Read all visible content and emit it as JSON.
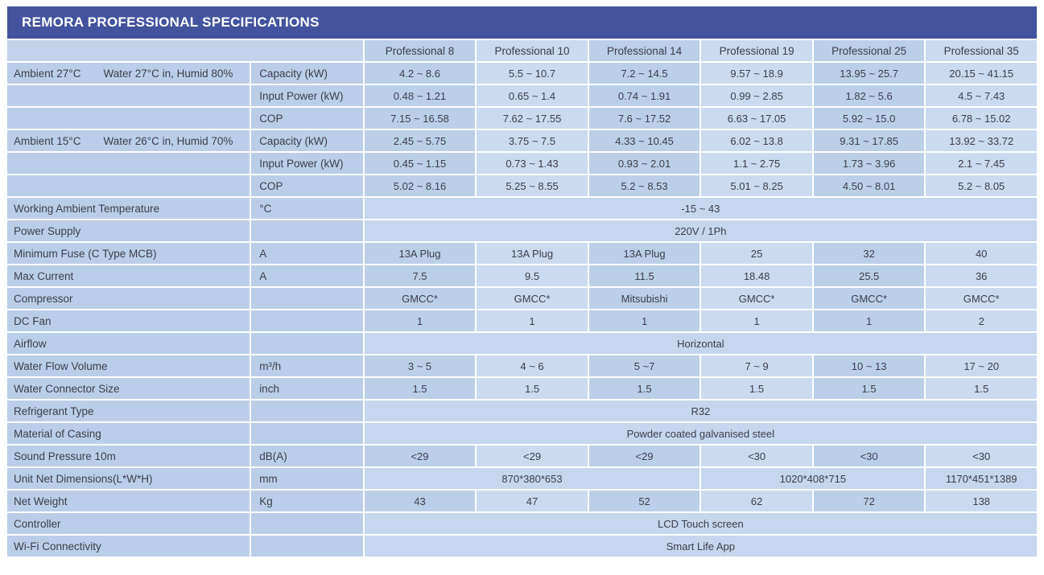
{
  "title": "REMORA PROFESSIONAL SPECIFICATIONS",
  "colors": {
    "title_bar": "#44539e",
    "cell_dark": "#bccfe9",
    "cell_light": "#cbdaf0",
    "cell_span": "#c6d6ee",
    "label_cell": "#bbcee9",
    "text": "#3d3d4c",
    "title_text": "#ffffff"
  },
  "columns": [
    "Professional 8",
    "Professional 10",
    "Professional 14",
    "Professional 19",
    "Professional 25",
    "Professional 35"
  ],
  "rows": [
    {
      "label": "Ambient 27°C",
      "label2": "Water 27°C in, Humid 80%",
      "unit": "Capacity (kW)",
      "cells": [
        "4.2 ~ 8.6",
        "5.5 ~ 10.7",
        "7.2 ~ 14.5",
        "9.57 ~ 18.9",
        "13.95 ~ 25.7",
        "20.15 ~ 41.15"
      ]
    },
    {
      "label": "",
      "unit": "Input Power (kW)",
      "cells": [
        "0.48 ~ 1.21",
        "0.65 ~ 1.4",
        "0.74 ~ 1.91",
        "0.99 ~ 2.85",
        "1.82 ~ 5.6",
        "4.5 ~ 7.43"
      ]
    },
    {
      "label": "",
      "unit": "COP",
      "cells": [
        "7.15 ~ 16.58",
        "7.62 ~ 17.55",
        "7.6 ~ 17.52",
        "6.63 ~ 17.05",
        "5.92 ~ 15.0",
        "6.78 ~ 15.02"
      ]
    },
    {
      "label": "Ambient 15°C",
      "label2": "Water 26°C in, Humid 70%",
      "unit": "Capacity (kW)",
      "cells": [
        "2.45 ~ 5.75",
        "3.75 ~ 7.5",
        "4.33 ~ 10.45",
        "6.02 ~ 13.8",
        "9.31 ~ 17.85",
        "13.92 ~ 33.72"
      ]
    },
    {
      "label": "",
      "unit": "Input Power (kW)",
      "cells": [
        "0.45 ~ 1.15",
        "0.73 ~ 1.43",
        "0.93 ~ 2.01",
        "1.1 ~ 2.75",
        "1.73 ~ 3.96",
        "2.1 ~ 7.45"
      ]
    },
    {
      "label": "",
      "unit": "COP",
      "cells": [
        "5.02 ~ 8.16",
        "5.25 ~ 8.55",
        "5.2 ~ 8.53",
        "5.01 ~ 8.25",
        "4.50 ~ 8.01",
        "5.2 ~ 8.05"
      ]
    },
    {
      "label": "Working Ambient Temperature",
      "unit": "°C",
      "span": "-15 ~ 43"
    },
    {
      "label": "Power Supply",
      "unit": "",
      "span": "220V / 1Ph"
    },
    {
      "label": "Minimum Fuse (C Type MCB)",
      "unit": "A",
      "cells": [
        "13A Plug",
        "13A Plug",
        "13A Plug",
        "25",
        "32",
        "40"
      ]
    },
    {
      "label": "Max Current",
      "unit": "A",
      "cells": [
        "7.5",
        "9.5",
        "11.5",
        "18.48",
        "25.5",
        "36"
      ]
    },
    {
      "label": "Compressor",
      "unit": "",
      "cells": [
        "GMCC*",
        "GMCC*",
        "Mitsubishi",
        "GMCC*",
        "GMCC*",
        "GMCC*"
      ]
    },
    {
      "label": "DC Fan",
      "unit": "",
      "cells": [
        "1",
        "1",
        "1",
        "1",
        "1",
        "2"
      ]
    },
    {
      "label": "Airflow",
      "unit": "",
      "span": "Horizontal"
    },
    {
      "label": "Water Flow Volume",
      "unit": "m³/h",
      "cells": [
        "3 ~ 5",
        "4 ~ 6",
        "5 ~7",
        "7 ~ 9",
        "10 ~ 13",
        "17 ~ 20"
      ]
    },
    {
      "label": "Water Connector Size",
      "unit": "inch",
      "cells": [
        "1.5",
        "1.5",
        "1.5",
        "1.5",
        "1.5",
        "1.5"
      ]
    },
    {
      "label": "Refrigerant Type",
      "unit": "",
      "span": "R32"
    },
    {
      "label": "Material of Casing",
      "unit": "",
      "span": "Powder coated galvanised steel"
    },
    {
      "label": "Sound Pressure 10m",
      "unit": "dB(A)",
      "cells": [
        "<29",
        "<29",
        "<29",
        "<30",
        "<30",
        "<30"
      ]
    },
    {
      "label": "Unit Net Dimensions(L*W*H)",
      "unit": "mm",
      "spans": [
        {
          "text": "870*380*653",
          "cols": 3
        },
        {
          "text": "1020*408*715",
          "cols": 2
        },
        {
          "text": "1170*451*1389",
          "cols": 1
        }
      ]
    },
    {
      "label": "Net Weight",
      "unit": "Kg",
      "cells": [
        "43",
        "47",
        "52",
        "62",
        "72",
        "138"
      ]
    },
    {
      "label": "Controller",
      "unit": "",
      "span": "LCD Touch screen"
    },
    {
      "label": "Wi-Fi Connectivity",
      "unit": "",
      "span": "Smart Life App"
    }
  ]
}
